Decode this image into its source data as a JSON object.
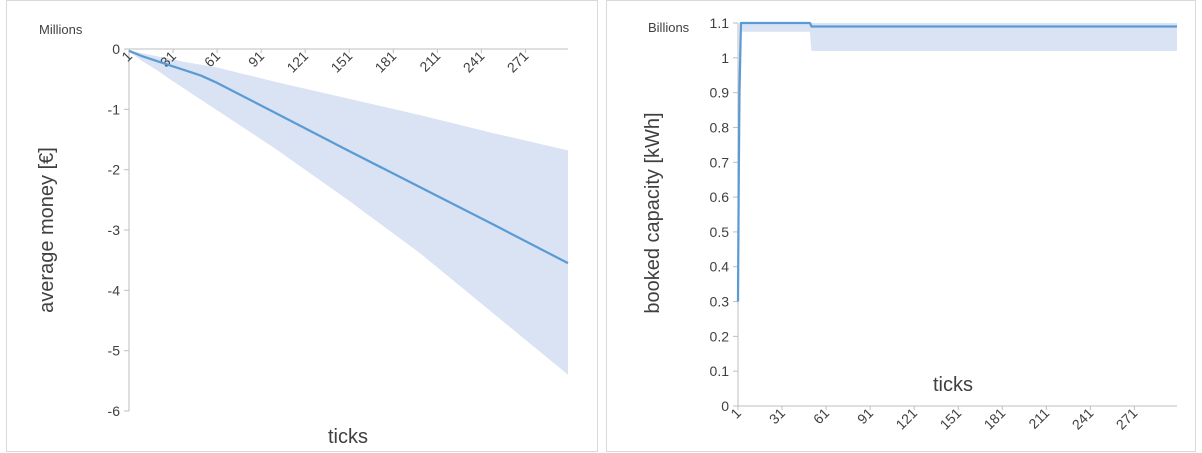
{
  "chart_data": [
    {
      "type": "area",
      "units_label": "Millions",
      "xlabel": "ticks",
      "ylabel": "average money [€]",
      "xlim": [
        1,
        300
      ],
      "ylim": [
        -6,
        0
      ],
      "y_ticks": [
        0,
        -1,
        -2,
        -3,
        -4,
        -5,
        -6
      ],
      "x_tick_labels": [
        "1",
        "31",
        "61",
        "91",
        "121",
        "151",
        "181",
        "211",
        "241",
        "271"
      ],
      "x_tick_values": [
        1,
        31,
        61,
        91,
        121,
        151,
        181,
        211,
        241,
        271
      ],
      "grid": false,
      "colors": {
        "line": "#5b9bd5",
        "band": "#dae3f3"
      },
      "series": [
        {
          "x": [
            1,
            10,
            20,
            30,
            40,
            50,
            60,
            80,
            100,
            150,
            200,
            250,
            300
          ],
          "values": [
            -0.03,
            -0.12,
            -0.2,
            -0.28,
            -0.36,
            -0.44,
            -0.55,
            -0.8,
            -1.05,
            -1.68,
            -2.3,
            -2.92,
            -3.55
          ]
        }
      ],
      "band": {
        "x": [
          1,
          10,
          20,
          30,
          40,
          50,
          60,
          80,
          100,
          150,
          200,
          250,
          300
        ],
        "upper": [
          -0.02,
          -0.07,
          -0.12,
          -0.17,
          -0.22,
          -0.26,
          -0.3,
          -0.42,
          -0.54,
          -0.82,
          -1.1,
          -1.4,
          -1.68
        ],
        "lower": [
          -0.04,
          -0.2,
          -0.35,
          -0.52,
          -0.68,
          -0.84,
          -1.0,
          -1.32,
          -1.64,
          -2.5,
          -3.4,
          -4.4,
          -5.4
        ]
      }
    },
    {
      "type": "area",
      "units_label": "Billions",
      "xlabel": "ticks",
      "ylabel": "booked capacity [kWh]",
      "xlim": [
        1,
        300
      ],
      "ylim": [
        0,
        1.1
      ],
      "y_ticks": [
        "0",
        "0.1",
        "0.2",
        "0.3",
        "0.4",
        "0.5",
        "0.6",
        "0.7",
        "0.8",
        "0.9",
        "1",
        "1.1"
      ],
      "x_tick_labels": [
        "1",
        "31",
        "61",
        "91",
        "121",
        "151",
        "181",
        "211",
        "241",
        "271"
      ],
      "x_tick_values": [
        1,
        31,
        61,
        91,
        121,
        151,
        181,
        211,
        241,
        271
      ],
      "grid": false,
      "colors": {
        "line": "#5b9bd5",
        "band": "#dae3f3"
      },
      "series": [
        {
          "x": [
            1,
            1.5,
            2,
            3,
            50,
            51,
            300
          ],
          "values": [
            0.3,
            0.65,
            0.9,
            1.1,
            1.1,
            1.09,
            1.09
          ]
        }
      ],
      "band": {
        "x": [
          1,
          2,
          3,
          50,
          51,
          300
        ],
        "upper": [
          0.9,
          1.1,
          1.1,
          1.1,
          1.1,
          1.1
        ],
        "lower": [
          0.22,
          0.8,
          1.075,
          1.075,
          1.02,
          1.02
        ]
      }
    }
  ]
}
